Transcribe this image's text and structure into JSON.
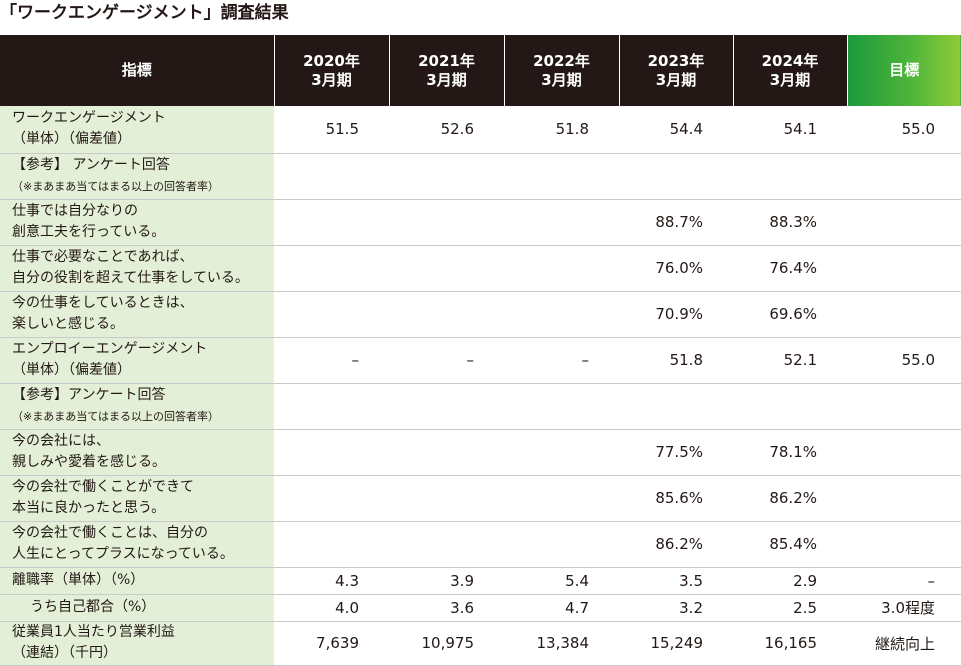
{
  "title": "「ワークエンゲージメント」調査結果",
  "header": {
    "indicator": "指標",
    "years": [
      {
        "line1": "2020年",
        "line2": "3月期"
      },
      {
        "line1": "2021年",
        "line2": "3月期"
      },
      {
        "line1": "2022年",
        "line2": "3月期"
      },
      {
        "line1": "2023年",
        "line2": "3月期"
      },
      {
        "line1": "2024年",
        "line2": "3月期"
      }
    ],
    "goal": "目標"
  },
  "rows": [
    {
      "l1": "ワークエンゲージメント",
      "l2": "（単体）（偏差値）",
      "v": [
        "51.5",
        "52.6",
        "51.8",
        "54.4",
        "54.1",
        "55.0"
      ]
    },
    {
      "l1": "【参考】 アンケート回答",
      "l2": "（※まあまあ当てはまる以上の回答者率）",
      "v": [
        "",
        "",
        "",
        "",
        "",
        ""
      ]
    },
    {
      "l1": "仕事では自分なりの",
      "l2": "創意工夫を行っている。",
      "v": [
        "",
        "",
        "",
        "88.7%",
        "88.3%",
        ""
      ]
    },
    {
      "l1": "仕事で必要なことであれば、",
      "l2": "自分の役割を超えて仕事をしている。",
      "v": [
        "",
        "",
        "",
        "76.0%",
        "76.4%",
        ""
      ]
    },
    {
      "l1": "今の仕事をしているときは、",
      "l2": "楽しいと感じる。",
      "v": [
        "",
        "",
        "",
        "70.9%",
        "69.6%",
        ""
      ]
    },
    {
      "l1": "エンプロイーエンゲージメント",
      "l2": "（単体）（偏差値）",
      "v": [
        "–",
        "–",
        "–",
        "51.8",
        "52.1",
        "55.0"
      ]
    },
    {
      "l1": "【参考】アンケート回答",
      "l2": "（※まあまあ当てはまる以上の回答者率）",
      "v": [
        "",
        "",
        "",
        "",
        "",
        ""
      ]
    },
    {
      "l1": "今の会社には、",
      "l2": "親しみや愛着を感じる。",
      "v": [
        "",
        "",
        "",
        "77.5%",
        "78.1%",
        ""
      ]
    },
    {
      "l1": "今の会社で働くことができて",
      "l2": "本当に良かったと思う。",
      "v": [
        "",
        "",
        "",
        "85.6%",
        "86.2%",
        ""
      ]
    },
    {
      "l1": "今の会社で働くことは、自分の",
      "l2": "人生にとってプラスになっている。",
      "v": [
        "",
        "",
        "",
        "86.2%",
        "85.4%",
        ""
      ]
    },
    {
      "l1": "離職率（単体）（%）",
      "v": [
        "4.3",
        "3.9",
        "5.4",
        "3.5",
        "2.9",
        "–"
      ]
    },
    {
      "l1": "うち自己都合（%）",
      "v": [
        "4.0",
        "3.6",
        "4.7",
        "3.2",
        "2.5",
        "3.0程度"
      ]
    },
    {
      "l1": "従業員1人当たり営業利益",
      "l2": "（連結）（千円）",
      "v": [
        "7,639",
        "10,975",
        "13,384",
        "15,249",
        "16,165",
        "継続向上"
      ]
    }
  ]
}
